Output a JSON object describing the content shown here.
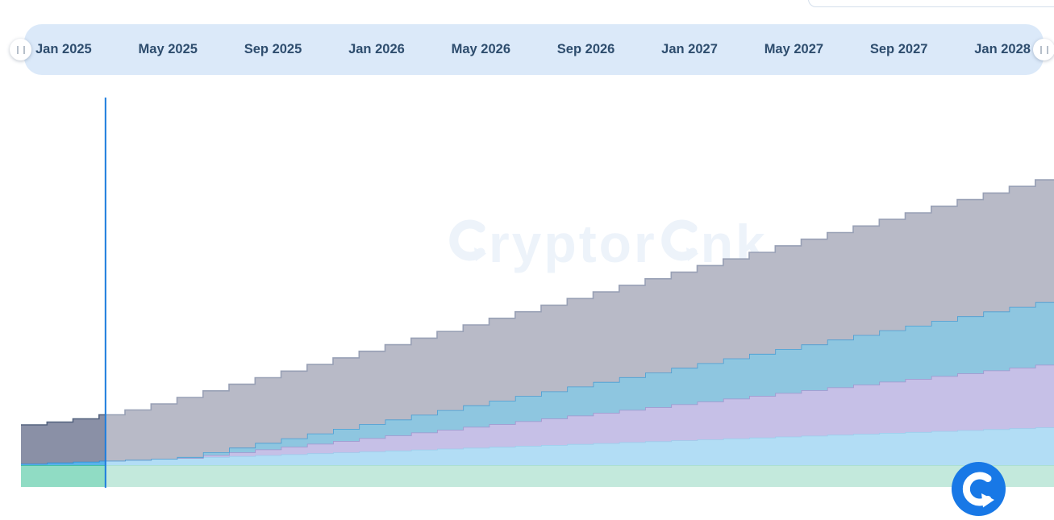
{
  "slider": {
    "labels": [
      "Jan 2025",
      "May 2025",
      "Sep 2025",
      "Jan 2026",
      "May 2026",
      "Sep 2026",
      "Jan 2027",
      "May 2027",
      "Sep 2027",
      "Jan 2028"
    ]
  },
  "watermark": {
    "full_text": "cryptorank",
    "part1": "ryptor",
    "part2": "nk"
  },
  "colors": {
    "accent_blue": "#1b7cdd",
    "slider_bg": "#dbe9f9",
    "slider_text": "#2e4d6e",
    "logo_blue": "#1878e6",
    "watermark": "#edf3fa"
  },
  "chart_data": {
    "type": "area",
    "subtype": "stacked-step-monthly",
    "title": "",
    "xlabel": "",
    "ylabel": "",
    "grid": false,
    "legend_visible": false,
    "x_start_label": "Dec 2024",
    "x_months_total": 41,
    "x_tick_labels": [
      "Jan 2025",
      "May 2025",
      "Sep 2025",
      "Jan 2026",
      "May 2026",
      "Sep 2026",
      "Jan 2027",
      "May 2027",
      "Sep 2027",
      "Jan 2028"
    ],
    "x_tick_month_indices": [
      1,
      5,
      9,
      13,
      17,
      21,
      25,
      29,
      33,
      37
    ],
    "today_marker_month": 3.25,
    "units": "relative-height",
    "ylim": [
      0,
      400
    ],
    "series": [
      {
        "name": "green",
        "fill": "#c3e9dc",
        "fill_past": "#90dcc4",
        "stroke": "#a6decb",
        "stroke_past": "#2eb69c",
        "values": 27
      },
      {
        "name": "light-blue",
        "fill": "#b2ddf5",
        "fill_past": "#59b3e9",
        "stroke": "#9ccdec",
        "stroke_past": "#2f97e0",
        "values": [
          2.0,
          3.2,
          4.3,
          5.5,
          6.6,
          7.8,
          8.9,
          10.1,
          11.2,
          12.4,
          13.5,
          14.7,
          15.8,
          17.0,
          18.1,
          19.3,
          20.4,
          21.6,
          22.7,
          23.9,
          25.0,
          26.2,
          27.3,
          28.5,
          29.6,
          30.8,
          31.9,
          33.1,
          34.2,
          35.4,
          36.5,
          37.7,
          38.8,
          40.0,
          41.1,
          42.3,
          43.4,
          44.6,
          45.7,
          46.9,
          48.0
        ]
      },
      {
        "name": "purple",
        "fill": "#c6c0e7",
        "fill_past": "#a49bd4",
        "stroke": "#a194ce",
        "stroke_past": "#8b7fc6",
        "values": [
          0,
          0,
          0,
          0,
          0,
          0,
          0,
          2.4,
          4.7,
          7.1,
          9.4,
          11.8,
          14.1,
          16.5,
          18.8,
          21.2,
          23.5,
          25.9,
          28.2,
          30.6,
          32.9,
          35.3,
          37.6,
          40.0,
          42.3,
          44.7,
          47.0,
          49.4,
          51.7,
          54.1,
          56.4,
          58.8,
          61.1,
          63.5,
          65.8,
          68.2,
          70.5,
          72.9,
          75.2,
          77.6,
          79.9
        ]
      },
      {
        "name": "blue",
        "fill": "#8ec6e0",
        "fill_past": "#4aa6dd",
        "stroke": "#489dd3",
        "stroke_past": "#2c8fd6",
        "values": [
          0,
          0,
          0,
          0,
          0,
          0,
          1.2,
          3.5,
          5.8,
          8.1,
          10.4,
          12.8,
          15.1,
          17.4,
          19.7,
          22.0,
          24.4,
          26.7,
          29.0,
          31.3,
          33.6,
          36.0,
          38.3,
          40.6,
          42.9,
          45.2,
          47.6,
          49.9,
          52.2,
          54.5,
          56.8,
          59.2,
          61.5,
          63.8,
          66.1,
          68.4,
          70.8,
          73.1,
          75.4,
          77.7,
          80.0
        ]
      },
      {
        "name": "gray",
        "fill": "#b8bac7",
        "fill_past": "#8a90a6",
        "stroke": "#98a0b5",
        "stroke_past": "#54637f",
        "values": [
          48.0,
          50.3,
          53.2,
          57.0,
          61.9,
          68.2,
          73.9,
          76.2,
          78.7,
          80.9,
          83.4,
          85.6,
          88.1,
          90.4,
          92.8,
          95.1,
          97.5,
          99.8,
          102.3,
          104.5,
          107.0,
          109.2,
          111.7,
          114.0,
          116.4,
          118.7,
          121.1,
          123.4,
          125.9,
          128.1,
          130.6,
          132.8,
          135.3,
          137.6,
          140.0,
          142.3,
          144.7,
          147.0,
          149.5,
          151.7,
          154.2
        ]
      }
    ]
  }
}
